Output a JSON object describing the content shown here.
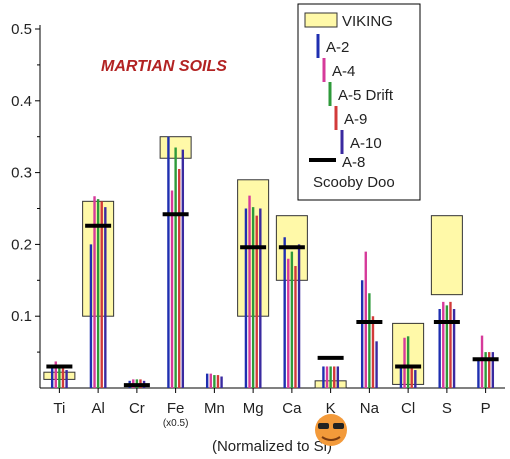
{
  "chart_data": {
    "type": "bar",
    "title": "MARTIAN SOILS",
    "xlabel": "(Normalized to Si)",
    "ylabel": "",
    "ylim": [
      0,
      0.5
    ],
    "yticks": [
      "0.1",
      "0.2",
      "0.3",
      "0.4",
      "0.5"
    ],
    "categories": [
      "Ti",
      "Al",
      "Cr",
      "Fe",
      "Mn",
      "Mg",
      "Ca",
      "K",
      "Na",
      "Cl",
      "S",
      "P"
    ],
    "category_notes": {
      "Fe": "(x0.5)"
    },
    "viking_ranges": [
      [
        0.012,
        0.022
      ],
      [
        0.1,
        0.26
      ],
      null,
      [
        0.32,
        0.35
      ],
      null,
      [
        0.1,
        0.29
      ],
      [
        0.15,
        0.24
      ],
      [
        0.0,
        0.01
      ],
      null,
      [
        0.005,
        0.09
      ],
      [
        0.13,
        0.24
      ],
      null
    ],
    "series": [
      {
        "name": "A-2",
        "color": "#1f2fb0",
        "values": [
          0.03,
          0.2,
          0.01,
          0.35,
          0.02,
          0.25,
          0.21,
          0.03,
          0.15,
          0.03,
          0.11,
          0.04
        ]
      },
      {
        "name": "A-4",
        "color": "#d63a9a",
        "values": [
          0.037,
          0.267,
          0.012,
          0.275,
          0.02,
          0.268,
          0.18,
          0.03,
          0.19,
          0.07,
          0.12,
          0.073
        ]
      },
      {
        "name": "A-5 Drift",
        "color": "#2e9a3a",
        "values": [
          0.032,
          0.263,
          0.012,
          0.335,
          0.018,
          0.252,
          0.19,
          0.03,
          0.132,
          0.072,
          0.115,
          0.05
        ]
      },
      {
        "name": "A-9",
        "color": "#d23a3a",
        "values": [
          0.03,
          0.26,
          0.012,
          0.305,
          0.018,
          0.24,
          0.17,
          0.03,
          0.1,
          0.03,
          0.12,
          0.05
        ]
      },
      {
        "name": "A-10",
        "color": "#3a2aa0",
        "values": [
          0.025,
          0.252,
          0.01,
          0.332,
          0.016,
          0.25,
          0.2,
          0.03,
          0.065,
          0.025,
          0.11,
          0.05
        ]
      }
    ],
    "marker_series": {
      "name": "A-8 Scooby Doo",
      "color": "#000000",
      "values": [
        0.03,
        0.226,
        0.004,
        0.242,
        null,
        0.196,
        0.196,
        0.042,
        0.092,
        0.03,
        0.092,
        0.04
      ]
    },
    "legend": {
      "placement": "top-right",
      "entries": [
        "VIKING",
        "A-2",
        "A-4",
        "A-5 Drift",
        "A-9",
        "A-10",
        "A-8",
        "Scooby Doo"
      ]
    },
    "colors": {
      "viking_fill": "#fff9a8",
      "viking_stroke": "#333333"
    }
  }
}
